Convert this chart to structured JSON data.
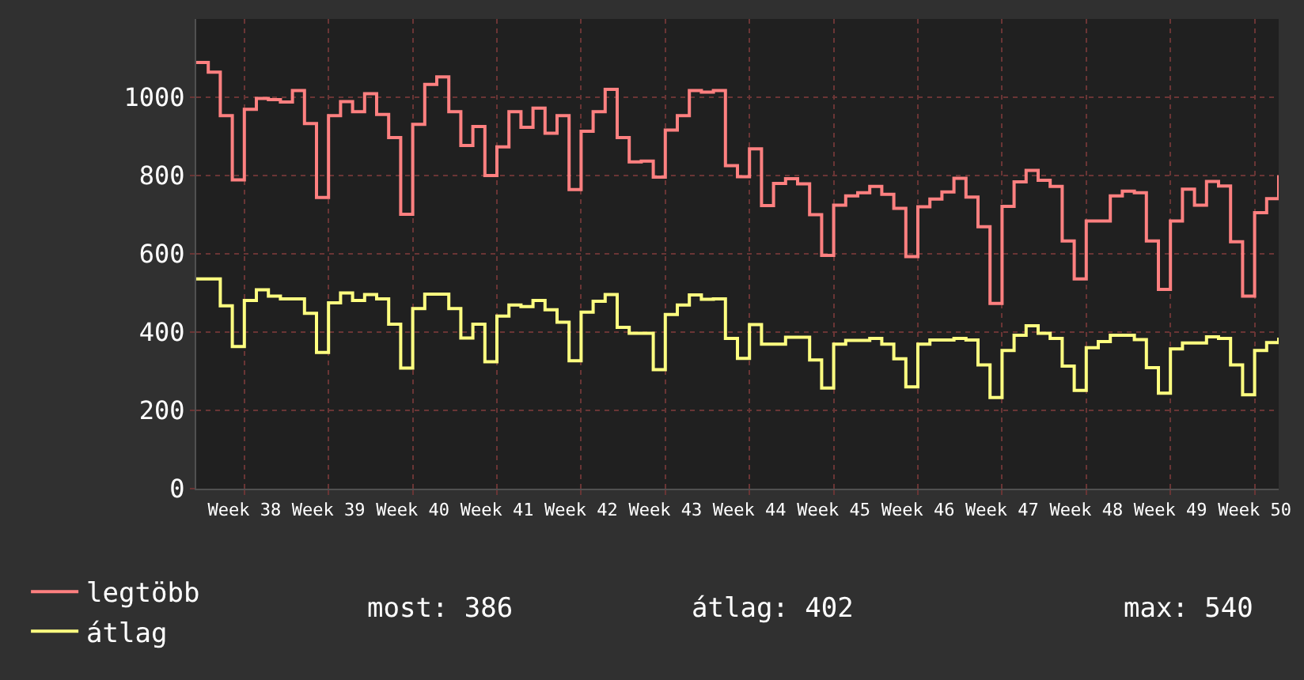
{
  "chart_data": {
    "type": "step",
    "categories": [
      null,
      null,
      null,
      null,
      "Week 38",
      null,
      null,
      null,
      null,
      null,
      null,
      "Week 39",
      null,
      null,
      null,
      null,
      null,
      null,
      "Week 40",
      null,
      null,
      null,
      null,
      null,
      null,
      "Week 41",
      null,
      null,
      null,
      null,
      null,
      null,
      "Week 42",
      null,
      null,
      null,
      null,
      null,
      null,
      "Week 43",
      null,
      null,
      null,
      null,
      null,
      null,
      "Week 44",
      null,
      null,
      null,
      null,
      null,
      null,
      "Week 45",
      null,
      null,
      null,
      null,
      null,
      null,
      "Week 46",
      null,
      null,
      null,
      null,
      null,
      null,
      "Week 47",
      null,
      null,
      null,
      null,
      null,
      null,
      "Week 48",
      null,
      null,
      null,
      null,
      null,
      null,
      "Week 49",
      null,
      null,
      null,
      null,
      null,
      null,
      "Week 50",
      null,
      null
    ],
    "series": [
      {
        "name": "legtöbb",
        "color": "#ff8080",
        "values": [
          1089,
          1064,
          953,
          789,
          969,
          997,
          994,
          988,
          1017,
          933,
          744,
          953,
          989,
          963,
          1009,
          956,
          897,
          701,
          931,
          1033,
          1052,
          963,
          877,
          925,
          800,
          873,
          963,
          923,
          972,
          908,
          953,
          764,
          913,
          963,
          1020,
          897,
          835,
          837,
          796,
          916,
          953,
          1017,
          1013,
          1017,
          825,
          797,
          868,
          723,
          780,
          792,
          779,
          700,
          596,
          724,
          748,
          756,
          772,
          752,
          716,
          593,
          720,
          740,
          758,
          793,
          745,
          669,
          473,
          721,
          784,
          813,
          788,
          772,
          633,
          536,
          684,
          684,
          748,
          760,
          756,
          633,
          509,
          684,
          765,
          724,
          785,
          773,
          631,
          492,
          705,
          741,
          801
        ]
      },
      {
        "name": "átlag",
        "color": "#ffff80",
        "values": [
          536,
          536,
          467,
          363,
          481,
          508,
          492,
          485,
          485,
          448,
          348,
          475,
          500,
          481,
          496,
          485,
          420,
          308,
          460,
          497,
          497,
          460,
          385,
          420,
          324,
          441,
          469,
          465,
          481,
          457,
          425,
          327,
          451,
          479,
          496,
          412,
          397,
          397,
          304,
          445,
          469,
          495,
          484,
          485,
          384,
          333,
          419,
          369,
          369,
          387,
          387,
          329,
          257,
          369,
          379,
          379,
          384,
          369,
          332,
          260,
          369,
          380,
          380,
          384,
          380,
          316,
          233,
          353,
          392,
          416,
          397,
          384,
          313,
          251,
          360,
          376,
          392,
          392,
          381,
          309,
          244,
          357,
          372,
          372,
          388,
          384,
          316,
          240,
          353,
          373,
          386
        ]
      }
    ],
    "ylim": [
      0,
      1200
    ],
    "yticks": [
      0,
      200,
      400,
      600,
      800,
      1000
    ],
    "grid": true,
    "legend": "bottom left",
    "annotations": [
      "most: 386",
      "átlag: 402",
      "max: 540"
    ]
  }
}
